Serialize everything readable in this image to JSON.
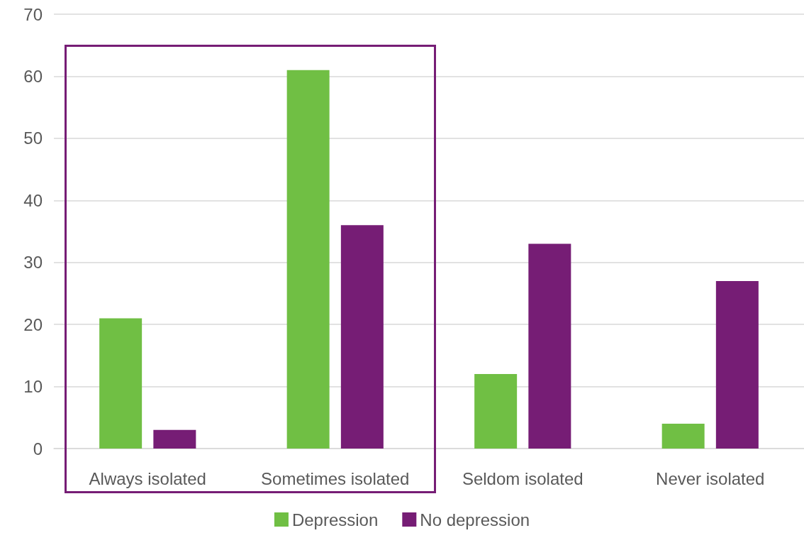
{
  "chart_data": {
    "type": "bar",
    "categories": [
      "Always isolated",
      "Sometimes isolated",
      "Seldom isolated",
      "Never isolated"
    ],
    "series": [
      {
        "name": "Depression",
        "color": "#70bf44",
        "values": [
          21,
          61,
          12,
          4
        ]
      },
      {
        "name": "No depression",
        "color": "#761d75",
        "values": [
          3,
          36,
          33,
          27
        ]
      }
    ],
    "ylim": [
      0,
      70
    ],
    "yticks": [
      0,
      10,
      20,
      30,
      40,
      50,
      60,
      70
    ],
    "grid": "y",
    "legend": "bottom"
  }
}
